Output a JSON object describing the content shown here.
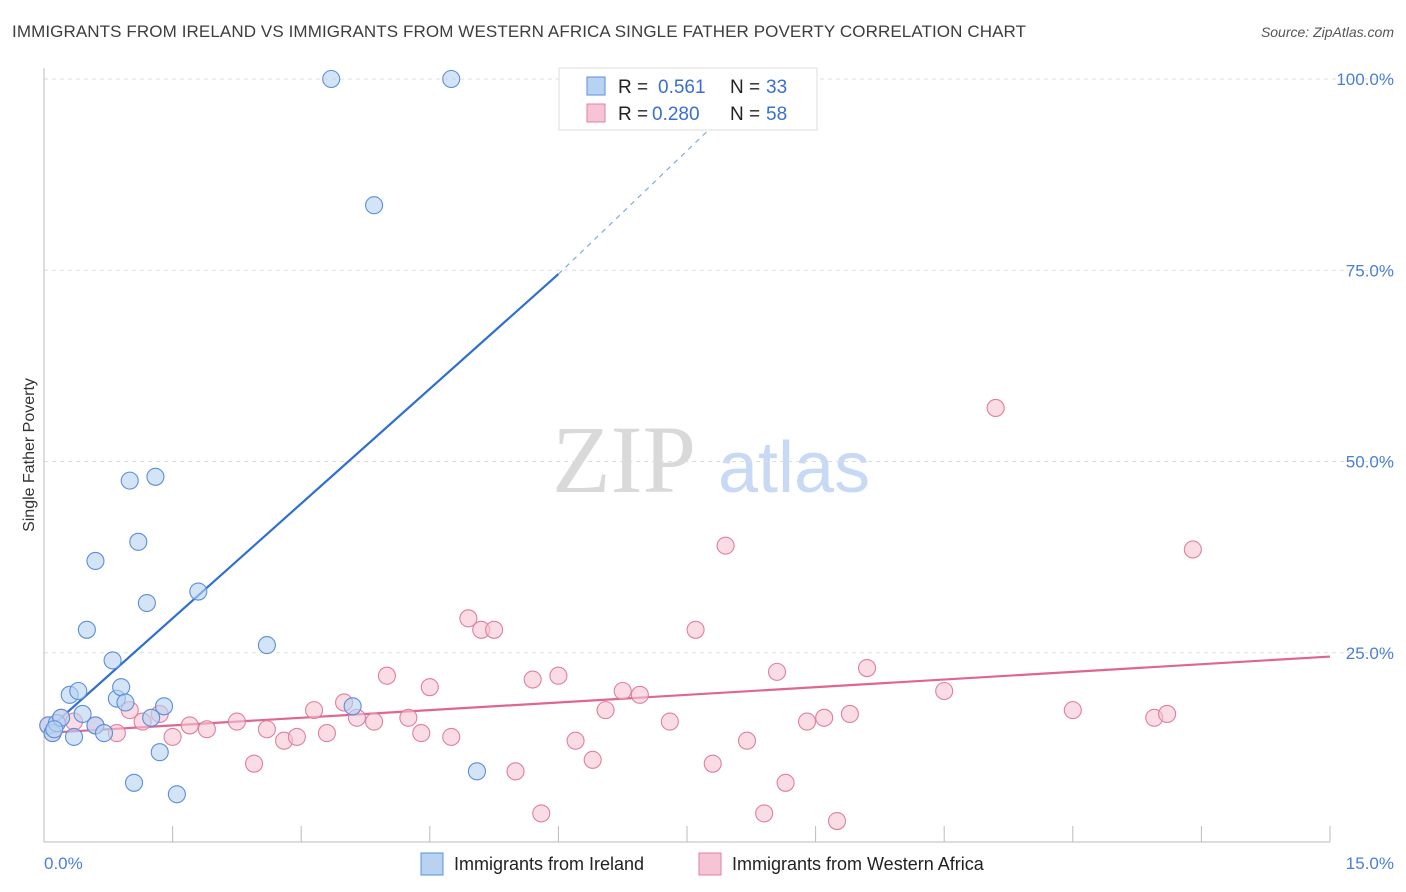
{
  "header": {
    "title": "IMMIGRANTS FROM IRELAND VS IMMIGRANTS FROM WESTERN AFRICA SINGLE FATHER POVERTY CORRELATION CHART",
    "source": "Source: ZipAtlas.com"
  },
  "watermark": {
    "zip": "ZIP",
    "atlas": "atlas"
  },
  "colors": {
    "blue_fill": "#b8d2f2",
    "blue_stroke": "#5b8fd8",
    "blue_line": "#2e6fd0",
    "pink_fill": "#f6c4d4",
    "pink_stroke": "#e07fa0",
    "pink_line": "#e06590",
    "grid": "#dddddd",
    "axis_text": "#4a7fd4"
  },
  "stats": {
    "r_label": "R =",
    "n_label": "N =",
    "ireland": {
      "r": "0.561",
      "n": "33"
    },
    "western_africa": {
      "r": "0.280",
      "n": "58"
    }
  },
  "chart_data": {
    "type": "scatter",
    "title": "IMMIGRANTS FROM IRELAND VS IMMIGRANTS FROM WESTERN AFRICA SINGLE FATHER POVERTY CORRELATION CHART",
    "xlabel": "",
    "ylabel": "Single Father Poverty",
    "xlim": [
      0,
      15
    ],
    "ylim": [
      0,
      105
    ],
    "x_tick_labels": [
      "0.0%",
      "15.0%"
    ],
    "y_ticks": [
      25,
      50,
      75,
      100
    ],
    "y_tick_labels": [
      "25.0%",
      "50.0%",
      "75.0%",
      "100.0%"
    ],
    "grid": true,
    "legend_position": "bottom-center",
    "series": [
      {
        "name": "Immigrants from Ireland",
        "color": "#5b8fd8",
        "points": [
          [
            0.05,
            15.5
          ],
          [
            0.1,
            14.5
          ],
          [
            0.15,
            15.8
          ],
          [
            0.2,
            16.5
          ],
          [
            0.3,
            19.5
          ],
          [
            0.35,
            14.0
          ],
          [
            0.4,
            20.0
          ],
          [
            0.45,
            17.0
          ],
          [
            0.5,
            28.0
          ],
          [
            0.6,
            37.0
          ],
          [
            0.6,
            15.5
          ],
          [
            0.7,
            14.5
          ],
          [
            0.8,
            24.0
          ],
          [
            0.85,
            19.0
          ],
          [
            0.9,
            20.5
          ],
          [
            0.95,
            18.5
          ],
          [
            1.0,
            47.5
          ],
          [
            1.05,
            8.0
          ],
          [
            1.1,
            39.5
          ],
          [
            1.2,
            31.5
          ],
          [
            1.25,
            16.5
          ],
          [
            1.3,
            48.0
          ],
          [
            1.35,
            12.0
          ],
          [
            1.4,
            18.0
          ],
          [
            1.55,
            6.5
          ],
          [
            1.8,
            33.0
          ],
          [
            2.6,
            26.0
          ],
          [
            3.35,
            100.0
          ],
          [
            3.6,
            18.0
          ],
          [
            3.85,
            83.5
          ],
          [
            4.75,
            100.0
          ],
          [
            5.05,
            9.5
          ],
          [
            0.12,
            15.0
          ]
        ],
        "trend": {
          "x": [
            0,
            6
          ],
          "y": [
            14.5,
            74.5
          ],
          "dashed_extension_to": [
            8,
            96
          ]
        }
      },
      {
        "name": "Immigrants from Western Africa",
        "color": "#e07fa0",
        "points": [
          [
            0.05,
            15.5
          ],
          [
            0.1,
            14.5
          ],
          [
            0.2,
            16.5
          ],
          [
            0.35,
            16.0
          ],
          [
            0.6,
            15.5
          ],
          [
            0.85,
            14.5
          ],
          [
            1.0,
            17.5
          ],
          [
            1.15,
            16.0
          ],
          [
            1.35,
            17.0
          ],
          [
            1.5,
            14.0
          ],
          [
            1.7,
            15.5
          ],
          [
            1.9,
            15.0
          ],
          [
            2.25,
            16.0
          ],
          [
            2.45,
            10.5
          ],
          [
            2.6,
            15.0
          ],
          [
            2.8,
            13.5
          ],
          [
            2.95,
            14.0
          ],
          [
            3.15,
            17.5
          ],
          [
            3.3,
            14.5
          ],
          [
            3.5,
            18.5
          ],
          [
            3.65,
            16.5
          ],
          [
            3.85,
            16.0
          ],
          [
            4.0,
            22.0
          ],
          [
            4.25,
            16.5
          ],
          [
            4.4,
            14.5
          ],
          [
            4.5,
            20.5
          ],
          [
            4.75,
            14.0
          ],
          [
            4.95,
            29.5
          ],
          [
            5.1,
            28.0
          ],
          [
            5.25,
            28.0
          ],
          [
            5.5,
            9.5
          ],
          [
            5.7,
            21.5
          ],
          [
            5.8,
            4.0
          ],
          [
            6.0,
            22.0
          ],
          [
            6.2,
            13.5
          ],
          [
            6.4,
            11.0
          ],
          [
            6.55,
            17.5
          ],
          [
            6.75,
            20.0
          ],
          [
            6.95,
            19.5
          ],
          [
            7.3,
            16.0
          ],
          [
            7.6,
            28.0
          ],
          [
            7.8,
            10.5
          ],
          [
            7.95,
            39.0
          ],
          [
            8.2,
            13.5
          ],
          [
            8.4,
            4.0
          ],
          [
            8.55,
            22.5
          ],
          [
            8.65,
            8.0
          ],
          [
            8.9,
            16.0
          ],
          [
            9.1,
            16.5
          ],
          [
            9.25,
            3.0
          ],
          [
            9.4,
            17.0
          ],
          [
            9.6,
            23.0
          ],
          [
            10.5,
            20.0
          ],
          [
            11.1,
            57.0
          ],
          [
            12.0,
            17.5
          ],
          [
            12.95,
            16.5
          ],
          [
            13.1,
            17.0
          ],
          [
            13.4,
            38.5
          ]
        ],
        "trend": {
          "x": [
            0,
            15
          ],
          "y": [
            14.5,
            24.5
          ]
        }
      }
    ]
  }
}
